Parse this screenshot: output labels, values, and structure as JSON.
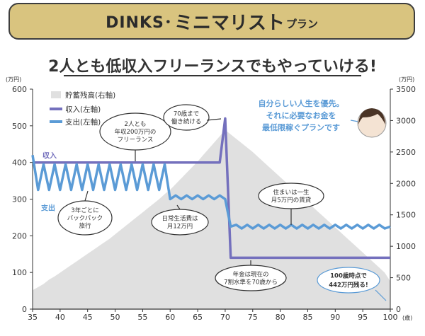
{
  "header": {
    "title_part1": "DINKS･",
    "title_part2": "ミニマリスト",
    "title_part3": "プラン"
  },
  "subtitle": "2人とも低収入フリーランスでもやっていける!",
  "colors": {
    "income": "#7470bd",
    "expense": "#5b9bd6",
    "savings": "#e0e0e0",
    "banner": "#d9c47f"
  },
  "chart_data": {
    "type": "line",
    "x": [
      35,
      36,
      37,
      38,
      39,
      40,
      41,
      42,
      43,
      44,
      45,
      46,
      47,
      48,
      49,
      50,
      51,
      52,
      53,
      54,
      55,
      56,
      57,
      58,
      59,
      60,
      61,
      62,
      63,
      64,
      65,
      66,
      67,
      68,
      69,
      70,
      71,
      72,
      73,
      74,
      75,
      76,
      77,
      78,
      79,
      80,
      81,
      82,
      83,
      84,
      85,
      86,
      87,
      88,
      89,
      90,
      91,
      92,
      93,
      94,
      95,
      96,
      97,
      98,
      99,
      100
    ],
    "series": [
      {
        "name": "収入(左軸)",
        "axis": "left",
        "values": [
          400,
          400,
          400,
          400,
          400,
          400,
          400,
          400,
          400,
          400,
          400,
          400,
          400,
          400,
          400,
          400,
          400,
          400,
          400,
          400,
          400,
          400,
          400,
          400,
          400,
          400,
          400,
          400,
          400,
          400,
          400,
          400,
          400,
          400,
          400,
          520,
          140,
          140,
          140,
          140,
          140,
          140,
          140,
          140,
          140,
          140,
          140,
          140,
          140,
          140,
          140,
          140,
          140,
          140,
          140,
          140,
          140,
          140,
          140,
          140,
          140,
          140,
          140,
          140,
          140,
          140
        ]
      },
      {
        "name": "支出(左軸)",
        "axis": "left",
        "values": [
          420,
          325,
          395,
          325,
          395,
          325,
          395,
          325,
          395,
          325,
          395,
          325,
          395,
          325,
          395,
          325,
          395,
          325,
          395,
          325,
          395,
          325,
          395,
          325,
          395,
          300,
          310,
          300,
          310,
          300,
          310,
          300,
          310,
          300,
          310,
          300,
          225,
          230,
          220,
          230,
          220,
          230,
          220,
          230,
          220,
          230,
          220,
          230,
          220,
          230,
          220,
          230,
          220,
          230,
          220,
          230,
          220,
          230,
          220,
          230,
          220,
          230,
          220,
          230,
          220,
          225
        ]
      },
      {
        "name": "貯蓄残高(右軸)",
        "axis": "right",
        "type": "area",
        "values": [
          300,
          350,
          400,
          470,
          520,
          580,
          640,
          700,
          760,
          820,
          880,
          940,
          1000,
          1060,
          1120,
          1190,
          1260,
          1330,
          1400,
          1470,
          1540,
          1610,
          1680,
          1750,
          1830,
          1900,
          1990,
          2080,
          2170,
          2260,
          2350,
          2450,
          2550,
          2650,
          2750,
          2850,
          2780,
          2710,
          2640,
          2570,
          2500,
          2420,
          2340,
          2260,
          2180,
          2100,
          2020,
          1940,
          1860,
          1780,
          1700,
          1620,
          1540,
          1460,
          1380,
          1300,
          1220,
          1140,
          1060,
          980,
          900,
          820,
          740,
          660,
          580,
          442
        ]
      }
    ],
    "left_unit": "(万円)",
    "right_unit": "(万円)",
    "x_unit": "(歳)",
    "ylim": [
      0,
      600
    ],
    "ylim_right": [
      0,
      3500
    ],
    "xlim": [
      35,
      100
    ],
    "x_ticks": [
      35,
      40,
      45,
      50,
      55,
      60,
      65,
      70,
      75,
      80,
      85,
      90,
      95,
      100
    ],
    "y_ticks": [
      0,
      100,
      200,
      300,
      400,
      500,
      600
    ],
    "y2_ticks": [
      0,
      500,
      1000,
      1500,
      2000,
      2500,
      3000,
      3500
    ],
    "series_labels": {
      "income": "収入",
      "expense": "支出"
    },
    "legend": [
      {
        "label": "貯蓄残高(右軸)",
        "key": "savings"
      },
      {
        "label": "収入(左軸)",
        "key": "income"
      },
      {
        "label": "支出(左軸)",
        "key": "expense"
      }
    ],
    "annotations": {
      "freelance": [
        "2人とも",
        "年収200万円の",
        "フリーランス"
      ],
      "work70": [
        "70歳まで",
        "働き続ける"
      ],
      "backpack": [
        "3年ごとに",
        "バックパック",
        "旅行"
      ],
      "living": [
        "日常生活費は",
        "月12万円"
      ],
      "housing": [
        "住まいは一生",
        "月5万円の賃貸"
      ],
      "pension": [
        "年金は現在の",
        "7割水準を70歳から"
      ],
      "result": [
        "100歳時点で",
        "442万円残る!"
      ],
      "speech": [
        "自分らしい人生を優先。",
        "それに必要なお金を",
        "最低限稼ぐプランです"
      ]
    }
  }
}
